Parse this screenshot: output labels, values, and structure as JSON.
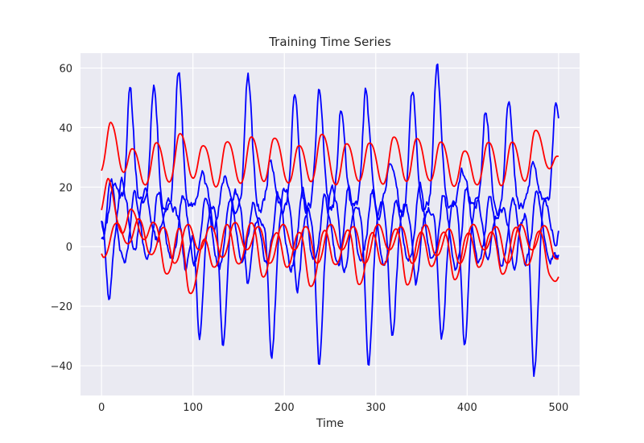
{
  "chart_data": {
    "type": "line",
    "title": "Training Time Series",
    "xlabel": "Time",
    "ylabel": "",
    "xlim": [
      -23,
      523
    ],
    "ylim": [
      -50,
      65
    ],
    "xticks": [
      0,
      100,
      200,
      300,
      400,
      500
    ],
    "yticks": [
      -40,
      -20,
      0,
      20,
      40,
      60
    ],
    "grid": true,
    "background": "#eaeaf2",
    "colors": {
      "series_a": "#0000ff",
      "series_b": "#ff0000"
    },
    "series": [
      {
        "color": "#0000ff",
        "style": "spiky",
        "x_range": [
          0,
          500
        ],
        "samples": 500,
        "seed": 11,
        "baseline": 16,
        "noise": 1.6,
        "events": [
          [
            3,
            -10
          ],
          [
            13,
            6
          ],
          [
            31,
            36
          ],
          [
            42,
            -2
          ],
          [
            57,
            39
          ],
          [
            68,
            -4
          ],
          [
            84,
            43
          ],
          [
            96,
            -4
          ],
          [
            110,
            8
          ],
          [
            124,
            -8
          ],
          [
            135,
            8
          ],
          [
            147,
            -5
          ],
          [
            160,
            42
          ],
          [
            172,
            -4
          ],
          [
            185,
            14
          ],
          [
            199,
            -4
          ],
          [
            211,
            35
          ],
          [
            224,
            -4
          ],
          [
            238,
            37
          ],
          [
            250,
            -4
          ],
          [
            262,
            30
          ],
          [
            274,
            -4
          ],
          [
            289,
            36
          ],
          [
            302,
            -5
          ],
          [
            316,
            14
          ],
          [
            328,
            -4
          ],
          [
            340,
            36
          ],
          [
            352,
            -4
          ],
          [
            367,
            44
          ],
          [
            381,
            -4
          ],
          [
            394,
            10
          ],
          [
            407,
            -4
          ],
          [
            420,
            31
          ],
          [
            432,
            -4
          ],
          [
            445,
            35
          ],
          [
            457,
            -4
          ],
          [
            472,
            12
          ],
          [
            485,
            -2
          ],
          [
            497,
            34
          ]
        ]
      },
      {
        "color": "#0000ff",
        "style": "spiky",
        "x_range": [
          0,
          500
        ],
        "samples": 500,
        "seed": 29,
        "baseline": 10,
        "noise": 1.4,
        "events": [
          [
            8,
            -27
          ],
          [
            22,
            12
          ],
          [
            35,
            -11
          ],
          [
            47,
            8
          ],
          [
            60,
            -8
          ],
          [
            74,
            6
          ],
          [
            92,
            -18
          ],
          [
            107,
            -40
          ],
          [
            120,
            5
          ],
          [
            133,
            -44
          ],
          [
            146,
            8
          ],
          [
            160,
            -22
          ],
          [
            175,
            -2
          ],
          [
            186,
            -46
          ],
          [
            200,
            10
          ],
          [
            214,
            -24
          ],
          [
            226,
            2
          ],
          [
            238,
            -50
          ],
          [
            252,
            10
          ],
          [
            265,
            -20
          ],
          [
            280,
            2
          ],
          [
            292,
            -48
          ],
          [
            306,
            6
          ],
          [
            318,
            -40
          ],
          [
            331,
            4
          ],
          [
            344,
            -22
          ],
          [
            357,
            2
          ],
          [
            372,
            -40
          ],
          [
            385,
            4
          ],
          [
            397,
            -42
          ],
          [
            410,
            6
          ],
          [
            422,
            -14
          ],
          [
            436,
            2
          ],
          [
            451,
            -18
          ],
          [
            465,
            2
          ],
          [
            473,
            -54
          ],
          [
            484,
            6
          ],
          [
            496,
            -8
          ]
        ]
      },
      {
        "color": "#0000ff",
        "style": "spiky",
        "x_range": [
          0,
          500
        ],
        "samples": 500,
        "seed": 47,
        "baseline": 3,
        "noise": 1.2,
        "events": [
          [
            10,
            20
          ],
          [
            24,
            -8
          ],
          [
            36,
            14
          ],
          [
            49,
            -6
          ],
          [
            62,
            16
          ],
          [
            76,
            -8
          ],
          [
            89,
            14
          ],
          [
            101,
            -8
          ],
          [
            114,
            14
          ],
          [
            128,
            -10
          ],
          [
            140,
            14
          ],
          [
            153,
            -8
          ],
          [
            166,
            12
          ],
          [
            180,
            -8
          ],
          [
            193,
            14
          ],
          [
            207,
            -10
          ],
          [
            220,
            16
          ],
          [
            232,
            -8
          ],
          [
            244,
            14
          ],
          [
            258,
            -10
          ],
          [
            270,
            18
          ],
          [
            283,
            -8
          ],
          [
            296,
            16
          ],
          [
            309,
            -10
          ],
          [
            322,
            14
          ],
          [
            335,
            -8
          ],
          [
            348,
            18
          ],
          [
            361,
            -8
          ],
          [
            374,
            14
          ],
          [
            387,
            -10
          ],
          [
            399,
            16
          ],
          [
            412,
            -8
          ],
          [
            425,
            14
          ],
          [
            437,
            -10
          ],
          [
            450,
            14
          ],
          [
            463,
            -8
          ],
          [
            476,
            16
          ],
          [
            489,
            -8
          ],
          [
            498,
            -6
          ]
        ]
      },
      {
        "color": "#ff0000",
        "style": "smooth",
        "x_range": [
          0,
          500
        ],
        "samples": 500,
        "seed": 5,
        "baseline": 24,
        "noise": 0.0,
        "events": [
          [
            10,
            18
          ],
          [
            22,
            -8
          ],
          [
            33,
            12
          ],
          [
            46,
            -8
          ],
          [
            59,
            14
          ],
          [
            72,
            -8
          ],
          [
            85,
            17
          ],
          [
            98,
            -8
          ],
          [
            110,
            13
          ],
          [
            124,
            -9
          ],
          [
            136,
            15
          ],
          [
            150,
            -8
          ],
          [
            163,
            16
          ],
          [
            176,
            -9
          ],
          [
            188,
            16
          ],
          [
            202,
            -8
          ],
          [
            215,
            13
          ],
          [
            228,
            -8
          ],
          [
            240,
            17
          ],
          [
            254,
            -9
          ],
          [
            267,
            14
          ],
          [
            280,
            -8
          ],
          [
            292,
            14
          ],
          [
            306,
            -8
          ],
          [
            319,
            16
          ],
          [
            332,
            -9
          ],
          [
            344,
            16
          ],
          [
            357,
            -8
          ],
          [
            370,
            14
          ],
          [
            384,
            -9
          ],
          [
            396,
            12
          ],
          [
            409,
            -8
          ],
          [
            422,
            14
          ],
          [
            436,
            -9
          ],
          [
            448,
            15
          ],
          [
            461,
            -8
          ],
          [
            474,
            18
          ],
          [
            487,
            -5
          ],
          [
            498,
            8
          ]
        ]
      },
      {
        "color": "#ff0000",
        "style": "smooth",
        "x_range": [
          0,
          500
        ],
        "samples": 500,
        "seed": 17,
        "baseline": 2,
        "noise": 0.0,
        "events": [
          [
            0,
            7
          ],
          [
            8,
            16
          ],
          [
            18,
            -6
          ],
          [
            32,
            12
          ],
          [
            44,
            -5
          ],
          [
            56,
            8
          ],
          [
            70,
            -14
          ],
          [
            84,
            10
          ],
          [
            96,
            -22
          ],
          [
            110,
            8
          ],
          [
            122,
            -12
          ],
          [
            136,
            10
          ],
          [
            148,
            -12
          ],
          [
            162,
            10
          ],
          [
            176,
            -16
          ],
          [
            188,
            9
          ],
          [
            202,
            -12
          ],
          [
            214,
            8
          ],
          [
            228,
            -18
          ],
          [
            242,
            10
          ],
          [
            254,
            -12
          ],
          [
            268,
            8
          ],
          [
            281,
            -18
          ],
          [
            294,
            10
          ],
          [
            306,
            -12
          ],
          [
            320,
            8
          ],
          [
            334,
            -18
          ],
          [
            346,
            10
          ],
          [
            360,
            -12
          ],
          [
            372,
            8
          ],
          [
            386,
            -16
          ],
          [
            398,
            9
          ],
          [
            412,
            -12
          ],
          [
            424,
            8
          ],
          [
            438,
            -14
          ],
          [
            451,
            10
          ],
          [
            464,
            -12
          ],
          [
            477,
            8
          ],
          [
            490,
            -14
          ],
          [
            499,
            -4
          ]
        ]
      },
      {
        "color": "#ff0000",
        "style": "smooth",
        "x_range": [
          0,
          500
        ],
        "samples": 500,
        "seed": 31,
        "baseline": 4,
        "noise": 0.0,
        "events": [
          [
            3,
            -8
          ],
          [
            14,
            8
          ],
          [
            27,
            -6
          ],
          [
            40,
            8
          ],
          [
            52,
            -10
          ],
          [
            66,
            6
          ],
          [
            79,
            -12
          ],
          [
            92,
            8
          ],
          [
            105,
            -8
          ],
          [
            118,
            6
          ],
          [
            131,
            -10
          ],
          [
            144,
            8
          ],
          [
            157,
            -8
          ],
          [
            170,
            6
          ],
          [
            183,
            -12
          ],
          [
            196,
            8
          ],
          [
            209,
            -8
          ],
          [
            222,
            6
          ],
          [
            235,
            -12
          ],
          [
            248,
            8
          ],
          [
            261,
            -8
          ],
          [
            274,
            6
          ],
          [
            287,
            -12
          ],
          [
            300,
            8
          ],
          [
            313,
            -8
          ],
          [
            326,
            6
          ],
          [
            339,
            -12
          ],
          [
            352,
            8
          ],
          [
            365,
            -10
          ],
          [
            378,
            6
          ],
          [
            391,
            -12
          ],
          [
            404,
            8
          ],
          [
            417,
            -8
          ],
          [
            430,
            6
          ],
          [
            443,
            -12
          ],
          [
            456,
            8
          ],
          [
            469,
            -8
          ],
          [
            482,
            6
          ],
          [
            496,
            -10
          ]
        ]
      }
    ]
  }
}
